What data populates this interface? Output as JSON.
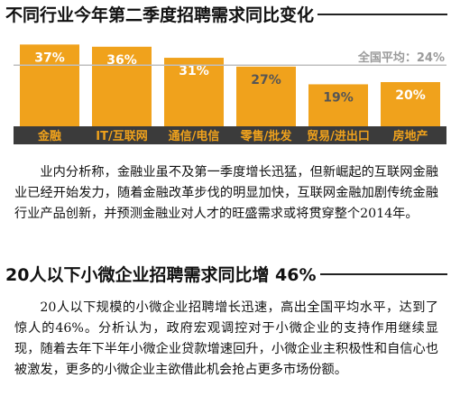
{
  "section1": {
    "title": "不同行业今年第二季度招聘需求同比变化",
    "paragraph": "业内分析称，金融业虽不及第一季度增长迅猛，但新崛起的互联网金融业已经开始发力，随着金融改革步伐的明显加快，互联网金融加剧传统金融行业产品创新，并预测金融业对人才的旺盛需求或将贯穿整个2014年。"
  },
  "section2": {
    "title": "20人以下小微企业招聘需求同比增 46%",
    "paragraph": "20人以下规模的小微企业招聘增长迅速，高出全国平均水平，达到了惊人的46%。分析认为，政府宏观调控对于小微企业的支持作用继续显现，随着去年下半年小微企业贷款增速回升，小微企业主积极性和自信心也被激发，更多的小微企业主欲借此机会抢占更多市场份额。"
  },
  "chart_data": {
    "type": "bar",
    "categories": [
      "金融",
      "IT/互联网",
      "通信/电信",
      "零售/批发",
      "贸易/进出口",
      "房地产"
    ],
    "values": [
      37,
      36,
      31,
      27,
      19,
      20
    ],
    "value_labels": [
      "37%",
      "36%",
      "31%",
      "27%",
      "19%",
      "20%"
    ],
    "ylim": [
      0,
      40
    ],
    "reference_line": {
      "value": 24,
      "label": "全国平均：24%"
    },
    "colors": {
      "bar": "#f0a21c",
      "category_band": "#3b3b3b",
      "category_text": "#f0a21c",
      "value_label": "#ffffff",
      "value_label_light": "#555555",
      "reference": "#bfbfbf"
    }
  }
}
